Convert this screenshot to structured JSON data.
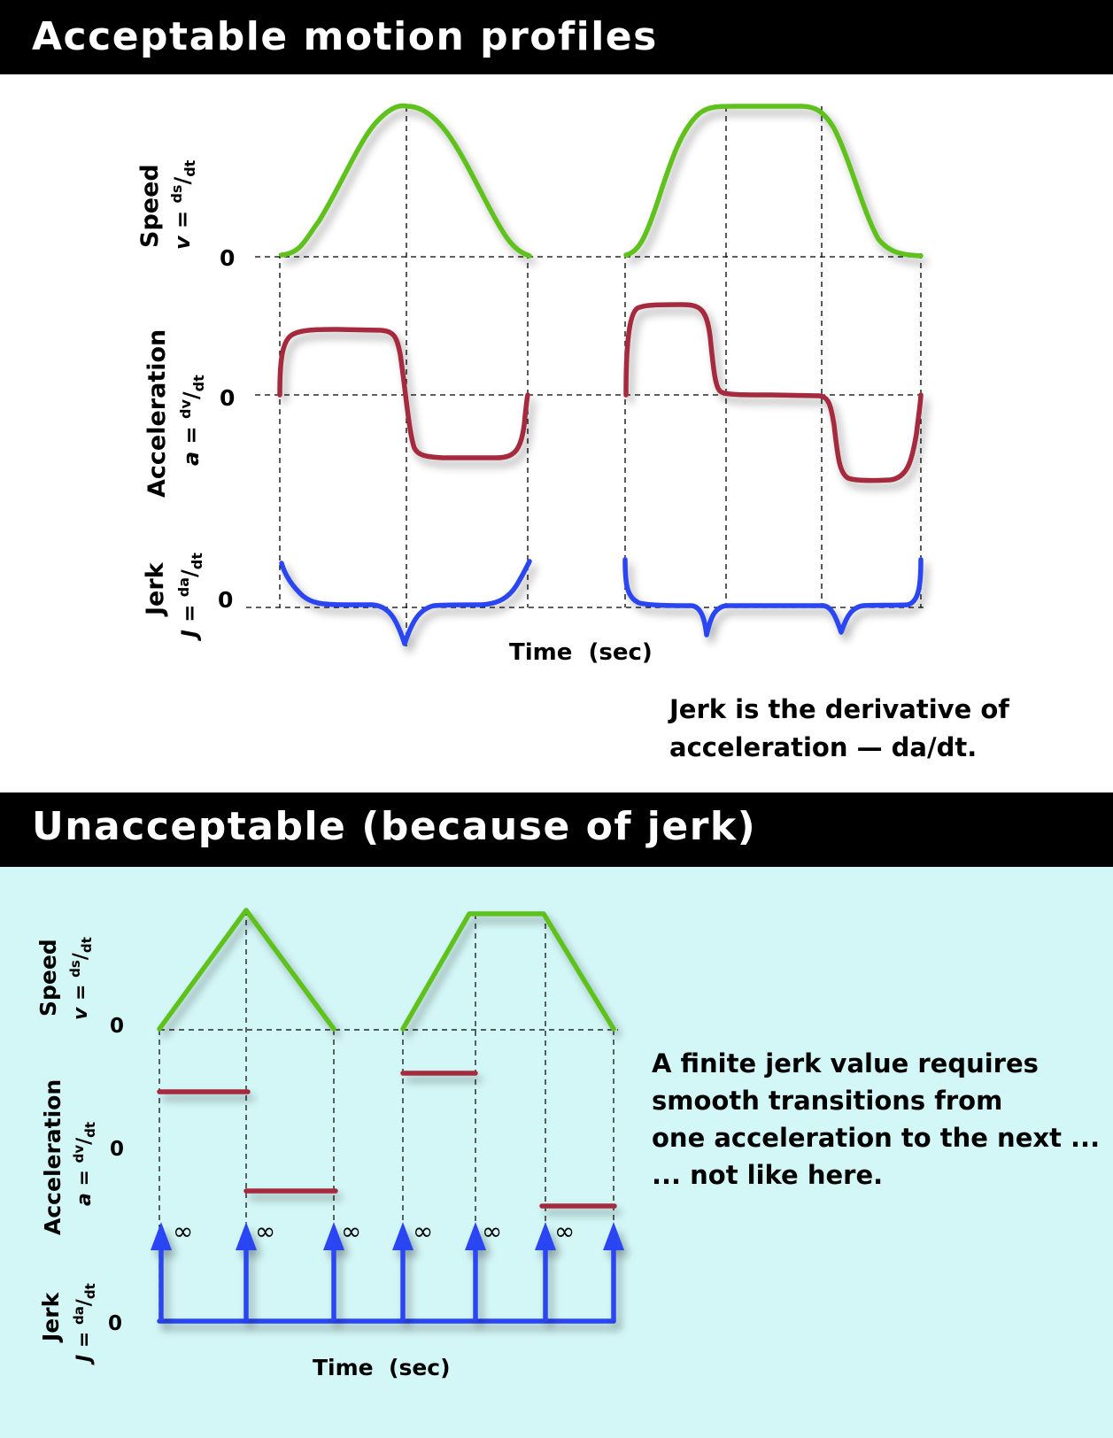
{
  "sections": {
    "acceptable_title": "Acceptable motion profiles",
    "unacceptable_title": "Unacceptable (because of jerk)"
  },
  "axes": {
    "speed_label": "Speed",
    "speed_formula": {
      "var": "v",
      "eq": " = ",
      "num": "ds",
      "den": "dt"
    },
    "acceleration_label": "Acceleration",
    "acceleration_formula": {
      "var": "a",
      "eq": " = ",
      "num": "dv",
      "den": "dt"
    },
    "jerk_label": "Jerk",
    "jerk_formula": {
      "var": "J",
      "eq": " = ",
      "num": "da",
      "den": "dt"
    },
    "zero": "0",
    "time_label": "Time  (sec)"
  },
  "notes": {
    "jerk_definition": [
      "Jerk is the derivative of",
      "acceleration — da/dt."
    ],
    "finite_jerk": [
      "A finite jerk value requires",
      "smooth transitions from",
      "one acceleration to the next ...",
      "... not like here."
    ]
  },
  "infinity_symbol": "∞",
  "colors": {
    "speed": "#5ec21a",
    "acceleration": "#a52a3c",
    "jerk": "#2b44f2",
    "banner": "#000000",
    "lower_background": "#d3f7f7"
  }
}
